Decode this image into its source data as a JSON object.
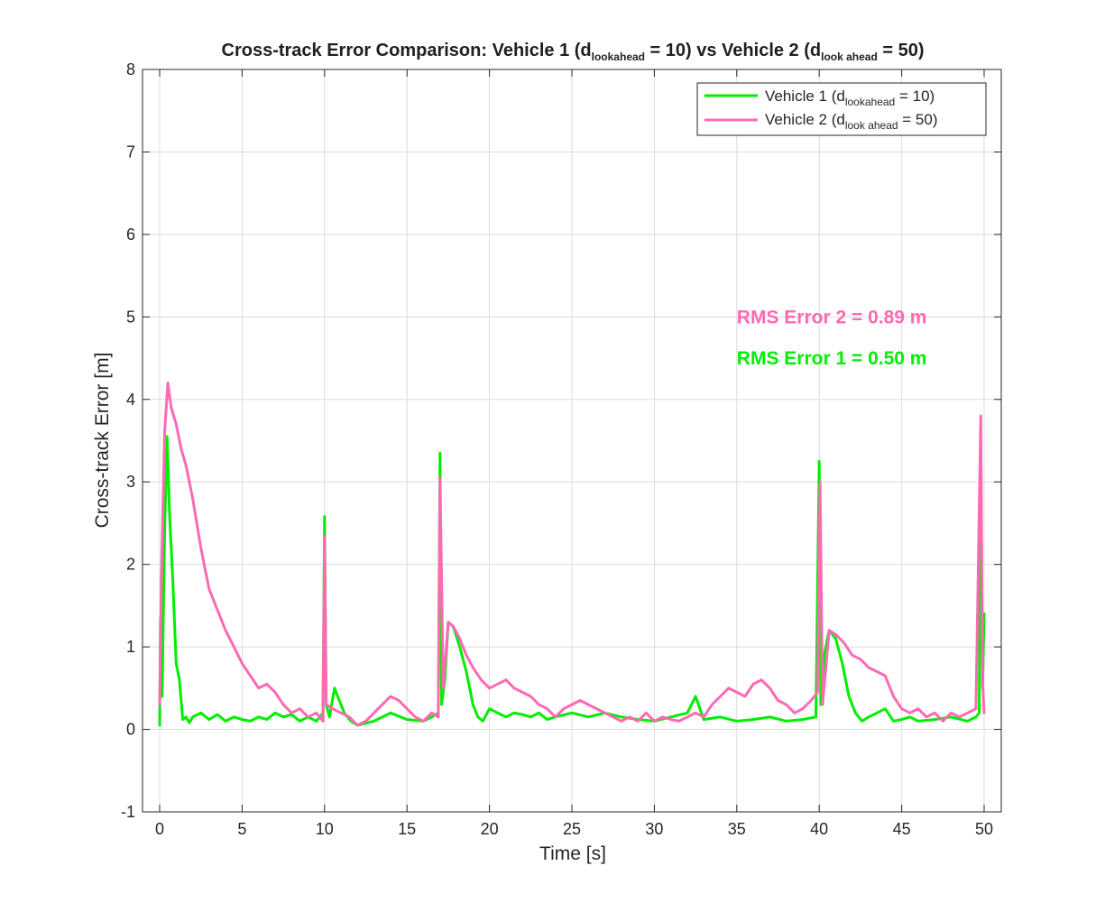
{
  "chart_data": {
    "type": "line",
    "title": {
      "prefix": "Cross-track Error Comparison: Vehicle 1 (d",
      "sub1": "lookahead",
      "mid": " = 10) vs Vehicle 2 (d",
      "sub2": "look ahead",
      "suffix": " = 50)"
    },
    "xlabel": "Time [s]",
    "ylabel": "Cross-track Error [m]",
    "xlim": [
      0,
      50
    ],
    "ylim": [
      -1,
      8
    ],
    "xticks": [
      "0",
      "5",
      "10",
      "15",
      "20",
      "25",
      "30",
      "35",
      "40",
      "45",
      "50"
    ],
    "yticks": [
      "-1",
      "0",
      "1",
      "2",
      "3",
      "4",
      "5",
      "6",
      "7",
      "8"
    ],
    "grid": true,
    "legend": {
      "placement": "top-right",
      "entries": [
        {
          "prefix": "Vehicle 1 (d",
          "sub": "lookahead",
          "suffix": " = 10)"
        },
        {
          "prefix": "Vehicle 2 (d",
          "sub": "look ahead",
          "suffix": " = 50)"
        }
      ]
    },
    "annotations": [
      {
        "text": "RMS Error 2 = 0.89 m",
        "x": 35,
        "y": 5.0,
        "color": "#ff69b4"
      },
      {
        "text": "RMS Error 1 = 0.50 m",
        "x": 35,
        "y": 4.5,
        "color": "#00ee00"
      }
    ],
    "series": [
      {
        "name": "Vehicle 1",
        "color": "#00ee00",
        "x": [
          0,
          0.05,
          0.15,
          0.3,
          0.45,
          0.6,
          0.8,
          1.0,
          1.2,
          1.4,
          1.6,
          1.8,
          2.0,
          2.5,
          3.0,
          3.5,
          4.0,
          4.5,
          5.0,
          5.5,
          6.0,
          6.5,
          7.0,
          7.5,
          8.0,
          8.5,
          9.0,
          9.5,
          9.9,
          10.0,
          10.1,
          10.3,
          10.6,
          10.8,
          11.2,
          11.6,
          12.0,
          13.0,
          14.0,
          15.0,
          16.0,
          16.5,
          16.9,
          17.0,
          17.1,
          17.3,
          17.5,
          17.8,
          18.2,
          18.6,
          19.0,
          19.3,
          19.6,
          20.0,
          20.5,
          21.0,
          21.5,
          22.0,
          22.5,
          23.0,
          23.5,
          24.0,
          25.0,
          26.0,
          27.0,
          28.0,
          29.0,
          30.0,
          31.0,
          32.0,
          32.5,
          33.0,
          34.0,
          35.0,
          36.0,
          37.0,
          38.0,
          39.0,
          39.8,
          40.0,
          40.1,
          40.3,
          40.6,
          41.0,
          41.4,
          41.8,
          42.2,
          42.6,
          43.0,
          43.5,
          44.0,
          44.5,
          45.0,
          45.5,
          46.0,
          47.0,
          48.0,
          49.0,
          49.5,
          49.7,
          49.8,
          49.9,
          50.0
        ],
        "y": [
          0.05,
          1.35,
          0.4,
          2.4,
          3.55,
          2.6,
          1.8,
          0.8,
          0.6,
          0.12,
          0.15,
          0.08,
          0.15,
          0.2,
          0.12,
          0.18,
          0.1,
          0.15,
          0.12,
          0.1,
          0.15,
          0.12,
          0.2,
          0.15,
          0.18,
          0.1,
          0.15,
          0.1,
          0.2,
          2.58,
          0.3,
          0.15,
          0.5,
          0.4,
          0.2,
          0.1,
          0.05,
          0.1,
          0.2,
          0.12,
          0.1,
          0.15,
          0.2,
          3.35,
          0.3,
          0.6,
          1.3,
          1.25,
          1.0,
          0.7,
          0.3,
          0.15,
          0.1,
          0.25,
          0.2,
          0.15,
          0.2,
          0.18,
          0.15,
          0.2,
          0.12,
          0.15,
          0.2,
          0.15,
          0.2,
          0.15,
          0.12,
          0.1,
          0.15,
          0.2,
          0.4,
          0.12,
          0.15,
          0.1,
          0.12,
          0.15,
          0.1,
          0.12,
          0.15,
          3.25,
          0.3,
          0.9,
          1.2,
          1.1,
          0.8,
          0.4,
          0.2,
          0.1,
          0.15,
          0.2,
          0.25,
          0.1,
          0.12,
          0.15,
          0.1,
          0.12,
          0.15,
          0.1,
          0.15,
          0.2,
          3.55,
          0.5,
          1.4
        ]
      },
      {
        "name": "Vehicle 2",
        "color": "#ff69b4",
        "x": [
          0,
          0.1,
          0.3,
          0.5,
          0.7,
          1.0,
          1.3,
          1.6,
          2.0,
          2.5,
          3.0,
          3.5,
          4.0,
          4.5,
          5.0,
          5.5,
          6.0,
          6.5,
          7.0,
          7.5,
          8.0,
          8.5,
          9.0,
          9.5,
          9.9,
          10.0,
          10.1,
          10.5,
          11.0,
          11.5,
          12.0,
          12.5,
          13.0,
          13.5,
          14.0,
          14.5,
          15.0,
          15.5,
          16.0,
          16.5,
          16.9,
          17.0,
          17.2,
          17.5,
          17.8,
          18.2,
          18.6,
          19.0,
          19.5,
          20.0,
          20.5,
          21.0,
          21.5,
          22.0,
          22.5,
          23.0,
          23.5,
          24.0,
          24.5,
          25.0,
          25.5,
          26.0,
          26.5,
          27.0,
          27.5,
          28.0,
          28.5,
          29.0,
          29.5,
          30.0,
          30.5,
          31.0,
          31.5,
          32.0,
          32.5,
          33.0,
          33.5,
          34.0,
          34.5,
          35.0,
          35.5,
          36.0,
          36.5,
          37.0,
          37.5,
          38.0,
          38.5,
          39.0,
          39.5,
          39.9,
          40.05,
          40.2,
          40.6,
          41.0,
          41.5,
          42.0,
          42.5,
          43.0,
          43.5,
          44.0,
          44.5,
          45.0,
          45.5,
          46.0,
          46.5,
          47.0,
          47.5,
          48.0,
          48.5,
          49.0,
          49.5,
          49.8,
          49.9,
          50.0
        ],
        "y": [
          0.3,
          1.8,
          3.6,
          4.2,
          3.9,
          3.7,
          3.4,
          3.2,
          2.8,
          2.2,
          1.7,
          1.45,
          1.2,
          1.0,
          0.8,
          0.65,
          0.5,
          0.55,
          0.45,
          0.3,
          0.2,
          0.25,
          0.15,
          0.2,
          0.1,
          2.35,
          0.3,
          0.25,
          0.2,
          0.15,
          0.05,
          0.1,
          0.2,
          0.3,
          0.4,
          0.35,
          0.25,
          0.15,
          0.1,
          0.2,
          0.15,
          3.05,
          0.5,
          1.3,
          1.25,
          1.1,
          0.9,
          0.75,
          0.6,
          0.5,
          0.55,
          0.6,
          0.5,
          0.45,
          0.4,
          0.3,
          0.25,
          0.15,
          0.25,
          0.3,
          0.35,
          0.3,
          0.25,
          0.2,
          0.15,
          0.1,
          0.15,
          0.1,
          0.2,
          0.1,
          0.15,
          0.12,
          0.1,
          0.15,
          0.2,
          0.15,
          0.3,
          0.4,
          0.5,
          0.45,
          0.4,
          0.55,
          0.6,
          0.5,
          0.35,
          0.3,
          0.2,
          0.25,
          0.35,
          0.45,
          3.0,
          0.3,
          1.2,
          1.15,
          1.05,
          0.9,
          0.85,
          0.75,
          0.7,
          0.65,
          0.4,
          0.25,
          0.2,
          0.25,
          0.15,
          0.2,
          0.1,
          0.2,
          0.15,
          0.2,
          0.25,
          3.8,
          0.6,
          0.2
        ]
      }
    ]
  }
}
